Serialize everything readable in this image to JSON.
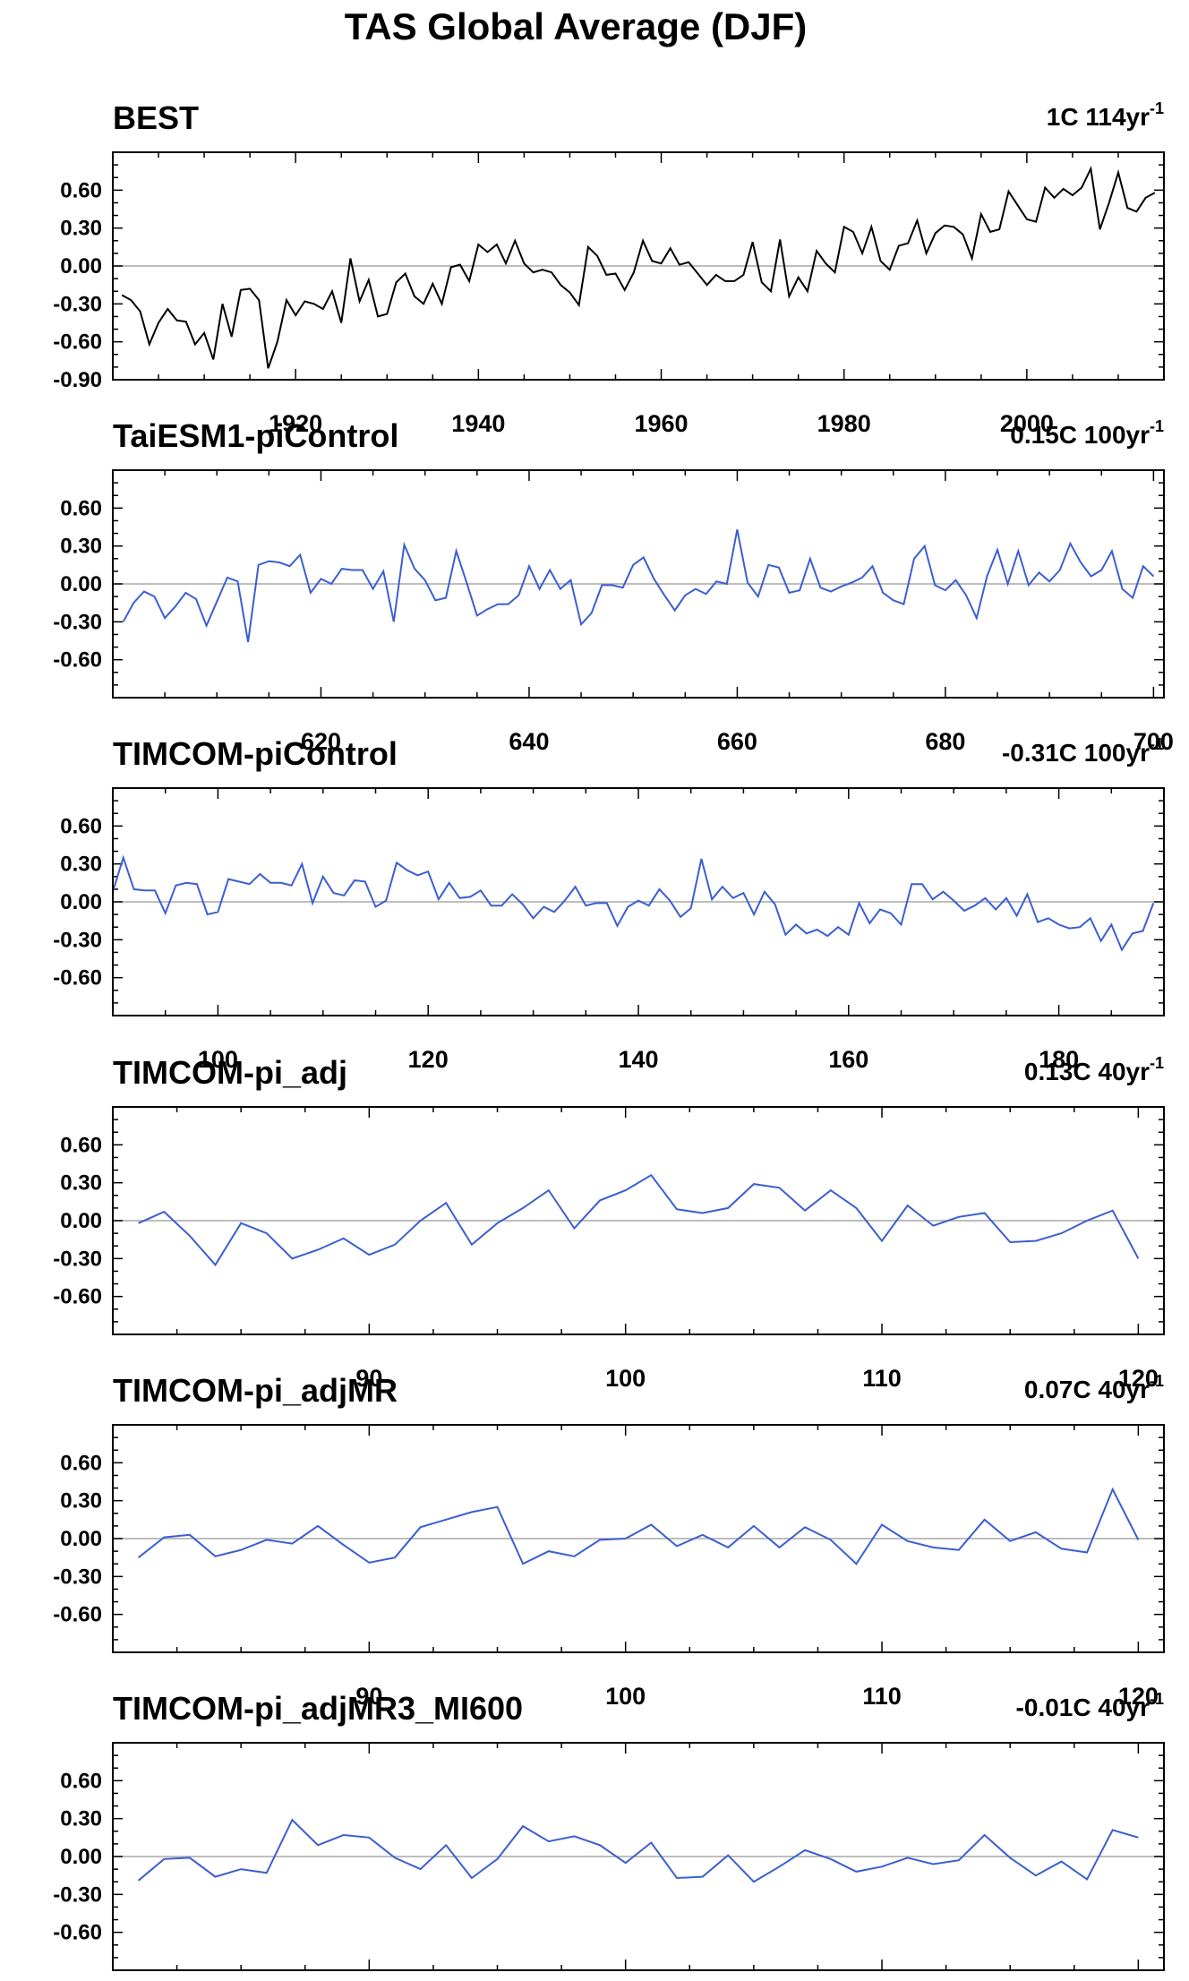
{
  "figure_title": "TAS Global Average (DJF)",
  "chart_data": [
    {
      "type": "line",
      "title": "BEST",
      "right_title": "1C 114yr",
      "right_title_sup": "-1",
      "color": "#000000",
      "x_start": 1901,
      "ylim": [
        -0.9,
        0.9
      ],
      "yticks": [
        0.6,
        0.3,
        0.0,
        -0.3,
        -0.6,
        -0.9
      ],
      "ytick_labels": [
        "0.60",
        "0.30",
        "0.00",
        "-0.30",
        "-0.60",
        "-0.90"
      ],
      "xlim": [
        1900,
        2015
      ],
      "xticks": [
        1920,
        1940,
        1960,
        1980,
        2000
      ],
      "xtick_labels": [
        "1920",
        "1940",
        "1960",
        "1980",
        "2000"
      ],
      "y": [
        -0.23,
        -0.27,
        -0.36,
        -0.62,
        -0.45,
        -0.34,
        -0.43,
        -0.44,
        -0.62,
        -0.53,
        -0.74,
        -0.3,
        -0.56,
        -0.19,
        -0.18,
        -0.27,
        -0.81,
        -0.6,
        -0.27,
        -0.39,
        -0.28,
        -0.3,
        -0.34,
        -0.2,
        -0.45,
        0.06,
        -0.28,
        -0.11,
        -0.4,
        -0.38,
        -0.13,
        -0.06,
        -0.24,
        -0.3,
        -0.14,
        -0.3,
        -0.01,
        0.01,
        -0.12,
        0.17,
        0.11,
        0.17,
        0.02,
        0.2,
        0.02,
        -0.05,
        -0.03,
        -0.05,
        -0.15,
        -0.21,
        -0.31,
        0.15,
        0.08,
        -0.07,
        -0.06,
        -0.19,
        -0.05,
        0.2,
        0.04,
        0.02,
        0.14,
        0.01,
        0.03,
        -0.06,
        -0.15,
        -0.07,
        -0.12,
        -0.12,
        -0.07,
        0.19,
        -0.13,
        -0.2,
        0.21,
        -0.24,
        -0.09,
        -0.2,
        0.12,
        0.02,
        -0.05,
        0.31,
        0.27,
        0.1,
        0.31,
        0.04,
        -0.03,
        0.16,
        0.18,
        0.36,
        0.1,
        0.26,
        0.32,
        0.31,
        0.25,
        0.06,
        0.41,
        0.27,
        0.29,
        0.59,
        0.48,
        0.37,
        0.35,
        0.62,
        0.54,
        0.61,
        0.56,
        0.62,
        0.77,
        0.29,
        0.5,
        0.74,
        0.46,
        0.43,
        0.54,
        0.58
      ]
    },
    {
      "type": "line",
      "title": "TaiESM1-piControl",
      "right_title": "0.15C 100yr",
      "right_title_sup": "-1",
      "color": "#3b5fd1",
      "x_start": 601,
      "ylim": [
        -0.9,
        0.9
      ],
      "yticks": [
        0.6,
        0.3,
        0.0,
        -0.3,
        -0.6,
        -0.9
      ],
      "ytick_labels": [
        "0.60",
        "0.30",
        "0.00",
        "-0.30",
        "-0.60",
        ""
      ],
      "xlim": [
        600,
        701
      ],
      "xticks": [
        620,
        640,
        660,
        680,
        700
      ],
      "xtick_labels": [
        "620",
        "640",
        "660",
        "680",
        "700"
      ],
      "y": [
        -0.3,
        -0.15,
        -0.06,
        -0.1,
        -0.27,
        -0.18,
        -0.07,
        -0.12,
        -0.33,
        -0.14,
        0.05,
        0.02,
        -0.46,
        0.15,
        0.18,
        0.17,
        0.14,
        0.23,
        -0.07,
        0.04,
        -0.0,
        0.12,
        0.11,
        0.11,
        -0.04,
        0.1,
        -0.3,
        0.31,
        0.12,
        0.03,
        -0.13,
        -0.11,
        0.26,
        0.01,
        -0.25,
        -0.2,
        -0.16,
        -0.16,
        -0.09,
        0.14,
        -0.04,
        0.11,
        -0.04,
        0.03,
        -0.32,
        -0.23,
        -0.01,
        -0.01,
        -0.03,
        0.15,
        0.21,
        0.04,
        -0.09,
        -0.21,
        -0.09,
        -0.04,
        -0.08,
        0.02,
        -0.0,
        0.43,
        0.01,
        -0.1,
        0.15,
        0.13,
        -0.07,
        -0.05,
        0.2,
        -0.03,
        -0.06,
        -0.02,
        0.01,
        0.05,
        0.14,
        -0.07,
        -0.13,
        -0.16,
        0.2,
        0.3,
        -0.01,
        -0.05,
        0.03,
        -0.09,
        -0.27,
        0.06,
        0.27,
        0.0,
        0.26,
        -0.01,
        0.09,
        0.02,
        0.11,
        0.32,
        0.17,
        0.06,
        0.11,
        0.26,
        -0.04,
        -0.11,
        0.14,
        0.06
      ]
    },
    {
      "type": "line",
      "title": "TIMCOM-piControl",
      "right_title": "-0.31C 100yr",
      "right_title_sup": "-1",
      "color": "#3b5fd1",
      "x_start": 90,
      "ylim": [
        -0.9,
        0.9
      ],
      "yticks": [
        0.6,
        0.3,
        0.0,
        -0.3,
        -0.6,
        -0.9
      ],
      "ytick_labels": [
        "0.60",
        "0.30",
        "0.00",
        "-0.30",
        "-0.60",
        ""
      ],
      "xlim": [
        90,
        190
      ],
      "xticks": [
        100,
        120,
        140,
        160,
        180
      ],
      "xtick_labels": [
        "100",
        "120",
        "140",
        "160",
        "180"
      ],
      "y": [
        0.08,
        0.35,
        0.1,
        0.09,
        0.09,
        -0.09,
        0.13,
        0.15,
        0.14,
        -0.1,
        -0.08,
        0.18,
        0.16,
        0.14,
        0.22,
        0.15,
        0.15,
        0.13,
        0.3,
        -0.01,
        0.2,
        0.07,
        0.05,
        0.17,
        0.16,
        -0.04,
        0.01,
        0.31,
        0.25,
        0.21,
        0.24,
        0.02,
        0.15,
        0.03,
        0.04,
        0.09,
        -0.03,
        -0.03,
        0.06,
        -0.02,
        -0.13,
        -0.04,
        -0.08,
        0.01,
        0.12,
        -0.03,
        -0.01,
        -0.01,
        -0.19,
        -0.04,
        0.01,
        -0.03,
        0.1,
        0.01,
        -0.12,
        -0.05,
        0.34,
        0.02,
        0.12,
        0.03,
        0.07,
        -0.1,
        0.08,
        -0.02,
        -0.26,
        -0.18,
        -0.25,
        -0.22,
        -0.27,
        -0.2,
        -0.26,
        -0.01,
        -0.17,
        -0.06,
        -0.09,
        -0.18,
        0.14,
        0.14,
        0.02,
        0.08,
        0.01,
        -0.07,
        -0.03,
        0.03,
        -0.06,
        0.03,
        -0.11,
        0.06,
        -0.16,
        -0.13,
        -0.18,
        -0.21,
        -0.2,
        -0.13,
        -0.31,
        -0.18,
        -0.38,
        -0.25,
        -0.23,
        -0.01
      ]
    },
    {
      "type": "line",
      "title": "TIMCOM-pi_adj",
      "right_title": "0.13C 40yr",
      "right_title_sup": "-1",
      "color": "#3b5fd1",
      "x_start": 81,
      "ylim": [
        -0.9,
        0.9
      ],
      "yticks": [
        0.6,
        0.3,
        0.0,
        -0.3,
        -0.6,
        -0.9
      ],
      "ytick_labels": [
        "0.60",
        "0.30",
        "0.00",
        "-0.30",
        "-0.60",
        ""
      ],
      "xlim": [
        80,
        121
      ],
      "xticks": [
        90,
        100,
        110,
        120
      ],
      "xtick_labels": [
        "90",
        "100",
        "110",
        "120"
      ],
      "y": [
        -0.02,
        0.07,
        -0.12,
        -0.35,
        -0.02,
        -0.1,
        -0.3,
        -0.23,
        -0.14,
        -0.27,
        -0.19,
        0.0,
        0.14,
        -0.19,
        -0.02,
        0.1,
        0.24,
        -0.06,
        0.16,
        0.24,
        0.36,
        0.09,
        0.06,
        0.1,
        0.29,
        0.26,
        0.08,
        0.24,
        0.1,
        -0.16,
        0.12,
        -0.04,
        0.03,
        0.06,
        -0.17,
        -0.16,
        -0.1,
        0.0,
        0.08,
        -0.3
      ]
    },
    {
      "type": "line",
      "title": "TIMCOM-pi_adjMR",
      "right_title": "0.07C 40yr",
      "right_title_sup": "-1",
      "color": "#3b5fd1",
      "x_start": 81,
      "ylim": [
        -0.9,
        0.9
      ],
      "yticks": [
        0.6,
        0.3,
        0.0,
        -0.3,
        -0.6,
        -0.9
      ],
      "ytick_labels": [
        "0.60",
        "0.30",
        "0.00",
        "-0.30",
        "-0.60",
        ""
      ],
      "xlim": [
        80,
        121
      ],
      "xticks": [
        90,
        100,
        110,
        120
      ],
      "xtick_labels": [
        "90",
        "100",
        "110",
        "120"
      ],
      "y": [
        -0.15,
        0.01,
        0.03,
        -0.14,
        -0.09,
        -0.01,
        -0.04,
        0.1,
        -0.05,
        -0.19,
        -0.15,
        0.09,
        0.15,
        0.21,
        0.25,
        -0.2,
        -0.1,
        -0.14,
        -0.01,
        0.0,
        0.11,
        -0.06,
        0.03,
        -0.07,
        0.1,
        -0.07,
        0.09,
        -0.01,
        -0.2,
        0.11,
        -0.02,
        -0.07,
        -0.09,
        0.15,
        -0.02,
        0.05,
        -0.08,
        -0.11,
        0.39,
        -0.01
      ]
    },
    {
      "type": "line",
      "title": "TIMCOM-pi_adjMR3_MI600",
      "right_title": "-0.01C 40yr",
      "right_title_sup": "-1",
      "color": "#3b5fd1",
      "x_start": 81,
      "ylim": [
        -0.9,
        0.9
      ],
      "yticks": [
        0.6,
        0.3,
        0.0,
        -0.3,
        -0.6,
        -0.9
      ],
      "ytick_labels": [
        "0.60",
        "0.30",
        "0.00",
        "-0.30",
        "-0.60",
        ""
      ],
      "xlim": [
        80,
        121
      ],
      "xticks": [
        90,
        100,
        110,
        120
      ],
      "xtick_labels": [
        "90",
        "100",
        "110",
        "120"
      ],
      "y": [
        -0.19,
        -0.02,
        -0.01,
        -0.16,
        -0.1,
        -0.13,
        0.29,
        0.09,
        0.17,
        0.15,
        -0.01,
        -0.1,
        0.09,
        -0.17,
        -0.02,
        0.24,
        0.12,
        0.16,
        0.09,
        -0.05,
        0.11,
        -0.17,
        -0.16,
        0.01,
        -0.2,
        -0.08,
        0.05,
        -0.02,
        -0.12,
        -0.08,
        -0.01,
        -0.06,
        -0.03,
        0.17,
        -0.01,
        -0.15,
        -0.04,
        -0.18,
        0.21,
        0.15
      ]
    }
  ]
}
